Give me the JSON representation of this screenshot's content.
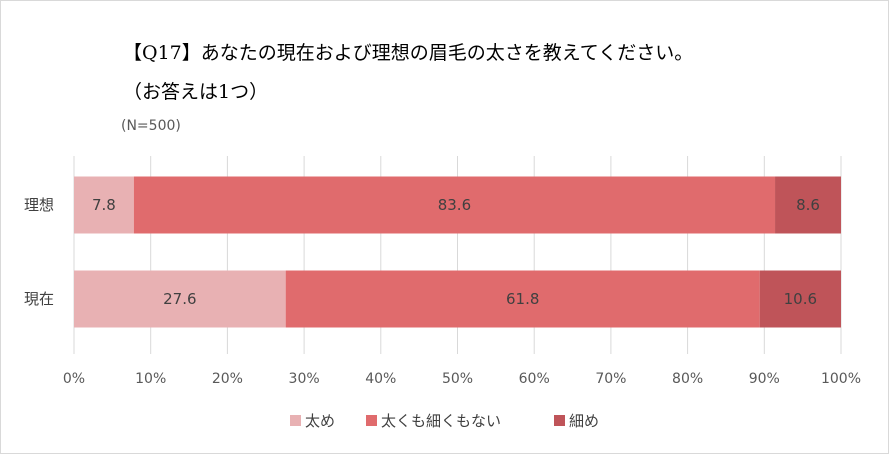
{
  "chart_data": {
    "type": "bar",
    "orientation": "horizontal",
    "stacked": "percent",
    "title": "【Q17】あなたの現在および理想の眉毛の太さを教えてください。",
    "subtitle": "（お答えは1つ）",
    "sample_note": "(N=500)",
    "categories": [
      "理想",
      "現在"
    ],
    "series": [
      {
        "name": "太め",
        "values": [
          7.8,
          27.6
        ],
        "color": "#e8b1b3"
      },
      {
        "name": "太くも細くもない",
        "values": [
          83.6,
          61.8
        ],
        "color": "#e06b6d"
      },
      {
        "name": "細め",
        "values": [
          8.6,
          10.6
        ],
        "color": "#bf5459"
      }
    ],
    "xlim": [
      0,
      100
    ],
    "x_ticks": [
      "0%",
      "10%",
      "20%",
      "30%",
      "40%",
      "50%",
      "60%",
      "70%",
      "80%",
      "90%",
      "100%"
    ],
    "grid": true,
    "legend_position": "bottom"
  }
}
